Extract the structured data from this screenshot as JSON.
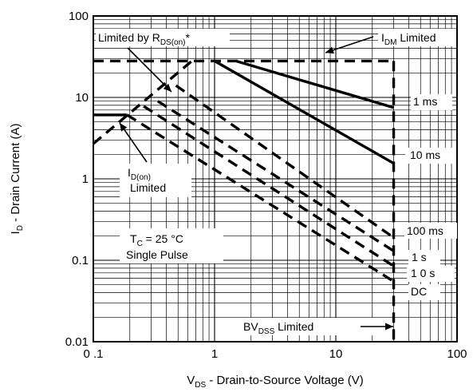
{
  "chart_data": {
    "type": "line",
    "xscale": "log",
    "yscale": "log",
    "xlim": [
      0.1,
      100
    ],
    "ylim": [
      0.01,
      100
    ],
    "grid": true,
    "xlabel": "V_DS - Drain-to-Source Voltage (V)",
    "ylabel": "I_D - Drain Current (A)",
    "x_tick_labels": [
      "0 .1",
      "1",
      "10",
      "100"
    ],
    "y_tick_labels": [
      "0.01",
      "0.1",
      "1",
      "10",
      "100"
    ],
    "series": [
      {
        "name": "1 ms",
        "style": "solid",
        "points": [
          [
            1.5,
            28
          ],
          [
            30,
            7.5
          ]
        ]
      },
      {
        "name": "10 ms",
        "style": "solid",
        "points": [
          [
            1.0,
            28
          ],
          [
            30,
            1.55
          ]
        ]
      },
      {
        "name": "100 ms",
        "style": "dashed",
        "points": [
          [
            0.48,
            14
          ],
          [
            30,
            0.19
          ]
        ]
      },
      {
        "name": "1 s",
        "style": "dashed",
        "points": [
          [
            0.34,
            9.0
          ],
          [
            30,
            0.13
          ]
        ]
      },
      {
        "name": "1 0  s",
        "style": "dashed",
        "points": [
          [
            0.26,
            7.8
          ],
          [
            30,
            0.085
          ]
        ]
      },
      {
        "name": "DC",
        "style": "dashed",
        "points": [
          [
            0.19,
            6.1
          ],
          [
            30,
            0.055
          ]
        ]
      }
    ],
    "limits": [
      {
        "name": "I_DM Limited",
        "style": "dashed",
        "points": [
          [
            0.1,
            28
          ],
          [
            30,
            28
          ]
        ]
      },
      {
        "name": "Limited by R_DS(on)*",
        "style": "dashed",
        "points": [
          [
            0.1,
            2.7
          ],
          [
            0.65,
            28
          ]
        ]
      },
      {
        "name": "I_D(on) Limited",
        "style": "solid",
        "points": [
          [
            0.1,
            6.1
          ],
          [
            0.19,
            6.1
          ]
        ]
      },
      {
        "name": "BV_DSS Limited",
        "style": "dashed",
        "points": [
          [
            30,
            28
          ],
          [
            30,
            0.01
          ]
        ]
      }
    ],
    "annotations": {
      "rds_limited": {
        "main": "Limited by R",
        "sub": "DS(on)",
        "tail": "*"
      },
      "idm_limited": {
        "main": "I",
        "sub": "DM",
        "tail": " Limited"
      },
      "idon_limited": {
        "main": "I",
        "sub": "D(on)",
        "line2": "Limited"
      },
      "conditions_line1": {
        "main": "T",
        "sub": "C",
        "tail": " = 25  °C"
      },
      "conditions_line2": "Single Pulse",
      "bvdss_limited": {
        "main": "BV",
        "sub": "DSS",
        "tail": " Limited"
      },
      "label_1ms": "1 ms",
      "label_10ms": "10 ms",
      "label_100ms": "100 ms",
      "label_1s": "1 s",
      "label_10s": "1 0  s",
      "label_dc": "DC"
    },
    "axis_titles": {
      "x": {
        "main": "V",
        "sub": "DS",
        "tail": " - Drain-to-Source Voltage (V)"
      },
      "y": {
        "main": "I",
        "sub": "D",
        "tail": " - Drain Current (A)"
      }
    },
    "colors": {
      "ink": "#000000",
      "background": "#ffffff"
    }
  }
}
